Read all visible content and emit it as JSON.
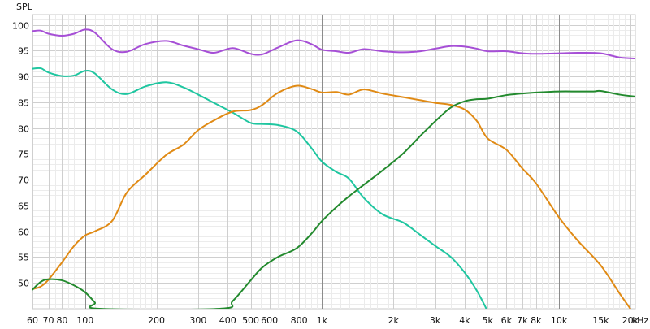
{
  "chart_data": {
    "type": "line",
    "title": "",
    "ylabel": "SPL",
    "xunit_label": "kHz",
    "xscale": "log",
    "xlim": [
      60,
      21000
    ],
    "ylim": [
      45,
      102
    ],
    "grid": true,
    "legend": "none",
    "x_tick_labels": [
      {
        "x": 60,
        "label": "60"
      },
      {
        "x": 70,
        "label": "70"
      },
      {
        "x": 80,
        "label": "80"
      },
      {
        "x": 100,
        "label": "100"
      },
      {
        "x": 200,
        "label": "200"
      },
      {
        "x": 300,
        "label": "300"
      },
      {
        "x": 400,
        "label": "400"
      },
      {
        "x": 500,
        "label": "500"
      },
      {
        "x": 600,
        "label": "600"
      },
      {
        "x": 800,
        "label": "800"
      },
      {
        "x": 1000,
        "label": "1k"
      },
      {
        "x": 2000,
        "label": "2k"
      },
      {
        "x": 3000,
        "label": "3k"
      },
      {
        "x": 4000,
        "label": "4k"
      },
      {
        "x": 5000,
        "label": "5k"
      },
      {
        "x": 6000,
        "label": "6k"
      },
      {
        "x": 7000,
        "label": "7k"
      },
      {
        "x": 8000,
        "label": "8k"
      },
      {
        "x": 10000,
        "label": "10k"
      },
      {
        "x": 15000,
        "label": "15k"
      },
      {
        "x": 20000,
        "label": "20k"
      }
    ],
    "y_ticks": [
      50,
      55,
      60,
      65,
      70,
      75,
      80,
      85,
      90,
      95,
      100
    ],
    "series": [
      {
        "color": "#a64fd6",
        "x": [
          60,
          65,
          70,
          80,
          90,
          100,
          110,
          130,
          150,
          180,
          220,
          260,
          300,
          350,
          420,
          500,
          560,
          650,
          780,
          900,
          1000,
          1150,
          1300,
          1500,
          1800,
          2200,
          2600,
          3000,
          3500,
          4000,
          4500,
          5000,
          6000,
          7000,
          8000,
          10000,
          12000,
          15000,
          18000,
          21000
        ],
        "y": [
          98.8,
          98.9,
          98.3,
          97.9,
          98.3,
          99.1,
          98.5,
          95.3,
          94.8,
          96.3,
          96.9,
          96.0,
          95.3,
          94.6,
          95.5,
          94.4,
          94.3,
          95.6,
          97.0,
          96.3,
          95.2,
          94.9,
          94.6,
          95.3,
          94.9,
          94.7,
          94.9,
          95.4,
          95.9,
          95.8,
          95.4,
          94.9,
          94.9,
          94.5,
          94.4,
          94.5,
          94.6,
          94.5,
          93.7,
          93.5
        ]
      },
      {
        "color": "#1fc6a0",
        "x": [
          60,
          65,
          70,
          80,
          90,
          100,
          110,
          130,
          150,
          180,
          220,
          260,
          300,
          350,
          420,
          500,
          560,
          650,
          780,
          900,
          1000,
          1150,
          1300,
          1500,
          1800,
          2200,
          2600,
          3000,
          3500,
          4000,
          4500,
          5000
        ],
        "y": [
          91.5,
          91.6,
          90.8,
          90.1,
          90.2,
          91.1,
          90.6,
          87.5,
          86.6,
          88.1,
          88.9,
          87.9,
          86.5,
          84.9,
          83.0,
          81.0,
          80.8,
          80.6,
          79.4,
          76.2,
          73.5,
          71.5,
          70.2,
          66.5,
          63.3,
          61.7,
          59.3,
          57.2,
          55.0,
          52.0,
          48.5,
          44.5
        ]
      },
      {
        "color": "#e08a14",
        "x": [
          60,
          65,
          70,
          80,
          90,
          100,
          110,
          130,
          150,
          180,
          220,
          260,
          300,
          350,
          420,
          500,
          560,
          650,
          780,
          900,
          1000,
          1150,
          1300,
          1500,
          1800,
          2200,
          2600,
          3000,
          3500,
          4000,
          4500,
          5000,
          6000,
          7000,
          8000,
          10000,
          12000,
          15000,
          18000,
          20000
        ],
        "y": [
          48.8,
          49.3,
          50.6,
          54.0,
          57.2,
          59.2,
          60.0,
          62.0,
          67.5,
          71.0,
          74.8,
          76.8,
          79.6,
          81.5,
          83.2,
          83.5,
          84.5,
          86.8,
          88.2,
          87.6,
          86.9,
          87.0,
          86.5,
          87.5,
          86.7,
          86.0,
          85.4,
          84.9,
          84.5,
          83.6,
          81.4,
          78.0,
          75.8,
          72.2,
          69.3,
          62.7,
          58.2,
          53.4,
          48.0,
          45.0
        ]
      },
      {
        "color": "#238a2e",
        "x": [
          60,
          65,
          70,
          80,
          90,
          100,
          110,
          115,
          370,
          420,
          500,
          560,
          650,
          780,
          900,
          1000,
          1150,
          1300,
          1500,
          1800,
          2200,
          2600,
          3000,
          3500,
          4000,
          4500,
          5000,
          6000,
          7000,
          8000,
          10000,
          12000,
          14000,
          15000,
          18000,
          21000
        ],
        "y": [
          48.7,
          50.2,
          50.7,
          50.5,
          49.5,
          48.2,
          46.2,
          45.0,
          45.0,
          46.5,
          50.5,
          53.0,
          55.0,
          56.7,
          59.5,
          62.0,
          64.7,
          66.8,
          69.0,
          71.8,
          75.1,
          78.5,
          81.3,
          84.0,
          85.2,
          85.6,
          85.7,
          86.4,
          86.7,
          86.9,
          87.1,
          87.1,
          87.1,
          87.2,
          86.5,
          86.1
        ]
      }
    ]
  }
}
